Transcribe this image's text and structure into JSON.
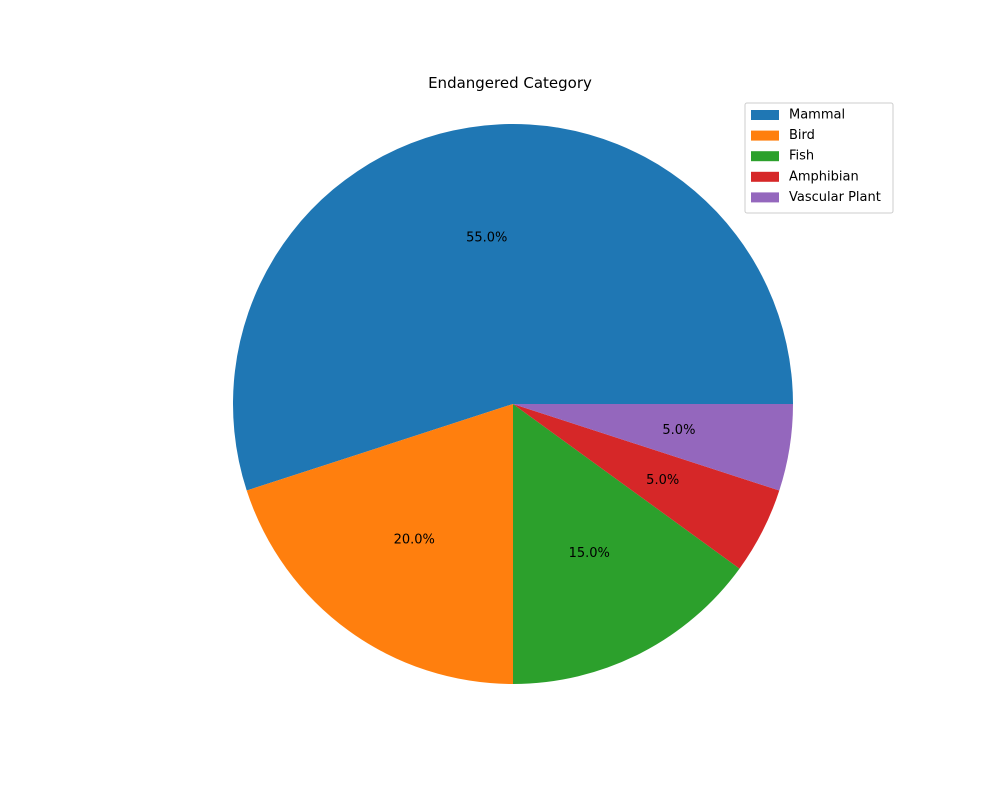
{
  "chart_data": {
    "type": "pie",
    "title": "Endangered Category",
    "categories": [
      "Mammal",
      "Bird",
      "Fish",
      "Amphibian",
      "Vascular Plant"
    ],
    "values": [
      55.0,
      20.0,
      15.0,
      5.0,
      5.0
    ],
    "labels": [
      "55.0%",
      "20.0%",
      "15.0%",
      "5.0%",
      "5.0%"
    ],
    "colors": [
      "#1f77b4",
      "#ff7f0e",
      "#2ca02c",
      "#d62728",
      "#9467bd"
    ],
    "legend_position": "top-right",
    "start_angle": "0 degrees (3 o'clock), counterclockwise"
  }
}
